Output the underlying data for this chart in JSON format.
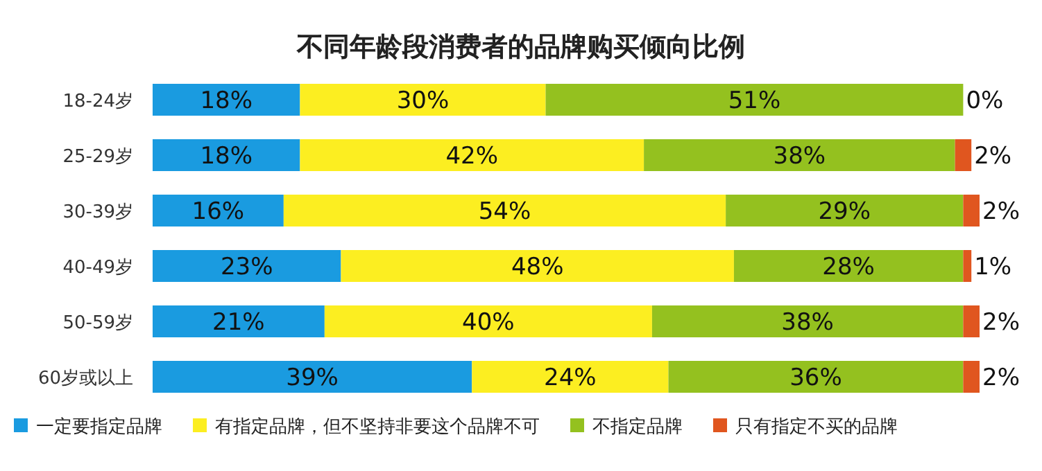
{
  "chart_data": {
    "type": "bar",
    "orientation": "horizontal",
    "stacked": true,
    "title": "不同年龄段消费者的品牌购买倾向比例",
    "legend": "bottom",
    "categories": [
      "18-24岁",
      "25-29岁",
      "30-39岁",
      "40-49岁",
      "50-59岁",
      "60岁或以上"
    ],
    "series": [
      {
        "name": "一定要指定品牌",
        "color": "#1a9be0",
        "values": [
          18,
          18,
          16,
          23,
          21,
          39
        ],
        "value_labels": [
          "18%",
          "18%",
          "16%",
          "23%",
          "21%",
          "39%"
        ]
      },
      {
        "name": "有指定品牌，但不坚持非要这个品牌不可",
        "color": "#fcee21",
        "values": [
          30,
          42,
          54,
          48,
          40,
          24
        ],
        "value_labels": [
          "30%",
          "42%",
          "54%",
          "48%",
          "40%",
          "24%"
        ]
      },
      {
        "name": "不指定品牌",
        "color": "#94c11f",
        "values": [
          51,
          38,
          29,
          28,
          38,
          36
        ],
        "value_labels": [
          "51%",
          "38%",
          "29%",
          "28%",
          "38%",
          "36%"
        ]
      },
      {
        "name": "只有指定不买的品牌",
        "color": "#e0561f",
        "values": [
          0,
          2,
          2,
          1,
          2,
          2
        ],
        "value_labels": [
          "0%",
          "2%",
          "2%",
          "1%",
          "2%",
          "2%"
        ]
      }
    ]
  }
}
